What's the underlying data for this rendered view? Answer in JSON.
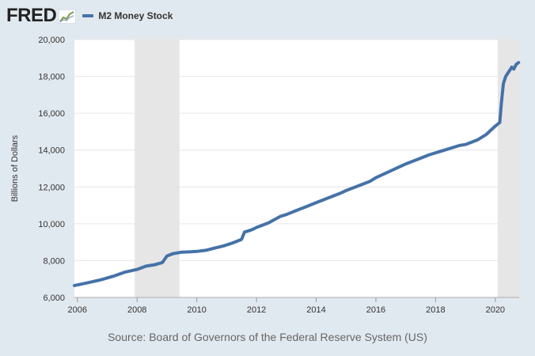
{
  "header": {
    "logo_text": "FRED",
    "legend_label": "M2 Money Stock"
  },
  "source_text": "Source: Board of Governors of the Federal Reserve System (US)",
  "colors": {
    "series": "#4572a7",
    "background": "#e1e9f0",
    "plot": "#ffffff",
    "recession": "#e6e6e6",
    "grid": "#e6e6e6"
  },
  "chart_data": {
    "type": "line",
    "title": "",
    "xlabel": "",
    "ylabel": "Billions of Dollars",
    "xlim": [
      2005.9,
      2020.8
    ],
    "ylim": [
      6000,
      20000
    ],
    "x_ticks": [
      {
        "value": 2006,
        "label": "2006"
      },
      {
        "value": 2008,
        "label": "2008"
      },
      {
        "value": 2010,
        "label": "2010"
      },
      {
        "value": 2012,
        "label": "2012"
      },
      {
        "value": 2014,
        "label": "2014"
      },
      {
        "value": 2016,
        "label": "2016"
      },
      {
        "value": 2018,
        "label": "2018"
      },
      {
        "value": 2020,
        "label": "2020"
      }
    ],
    "y_ticks": [
      {
        "value": 6000,
        "label": "6,000"
      },
      {
        "value": 8000,
        "label": "8,000"
      },
      {
        "value": 10000,
        "label": "10,000"
      },
      {
        "value": 12000,
        "label": "12,000"
      },
      {
        "value": 14000,
        "label": "14,000"
      },
      {
        "value": 16000,
        "label": "16,000"
      },
      {
        "value": 18000,
        "label": "18,000"
      },
      {
        "value": 20000,
        "label": "20,000"
      }
    ],
    "grid": true,
    "recessions": [
      {
        "start": 2007.92,
        "end": 2009.42
      },
      {
        "start": 2020.08,
        "end": 2020.8
      }
    ],
    "series": [
      {
        "name": "M2 Money Stock",
        "x": [
          2005.9,
          2006.3,
          2006.8,
          2007.2,
          2007.6,
          2008.0,
          2008.3,
          2008.6,
          2008.85,
          2009.0,
          2009.2,
          2009.5,
          2009.8,
          2010.0,
          2010.3,
          2010.6,
          2010.9,
          2011.2,
          2011.5,
          2011.6,
          2011.7,
          2011.85,
          2012.0,
          2012.4,
          2012.8,
          2013.0,
          2013.3,
          2013.7,
          2014.0,
          2014.4,
          2014.8,
          2015.0,
          2015.4,
          2015.8,
          2016.0,
          2016.4,
          2016.8,
          2017.0,
          2017.4,
          2017.8,
          2018.0,
          2018.4,
          2018.8,
          2019.0,
          2019.4,
          2019.7,
          2020.0,
          2020.15,
          2020.2,
          2020.27,
          2020.35,
          2020.45,
          2020.55,
          2020.62,
          2020.7,
          2020.78
        ],
        "values": [
          6650,
          6780,
          6960,
          7150,
          7380,
          7520,
          7700,
          7780,
          7900,
          8250,
          8380,
          8460,
          8480,
          8500,
          8560,
          8680,
          8800,
          8960,
          9150,
          9550,
          9600,
          9680,
          9800,
          10050,
          10400,
          10500,
          10700,
          10950,
          11150,
          11400,
          11650,
          11800,
          12050,
          12300,
          12500,
          12800,
          13100,
          13250,
          13500,
          13750,
          13850,
          14050,
          14250,
          14300,
          14550,
          14850,
          15300,
          15500,
          16500,
          17600,
          18000,
          18250,
          18500,
          18400,
          18650,
          18750
        ]
      }
    ]
  }
}
